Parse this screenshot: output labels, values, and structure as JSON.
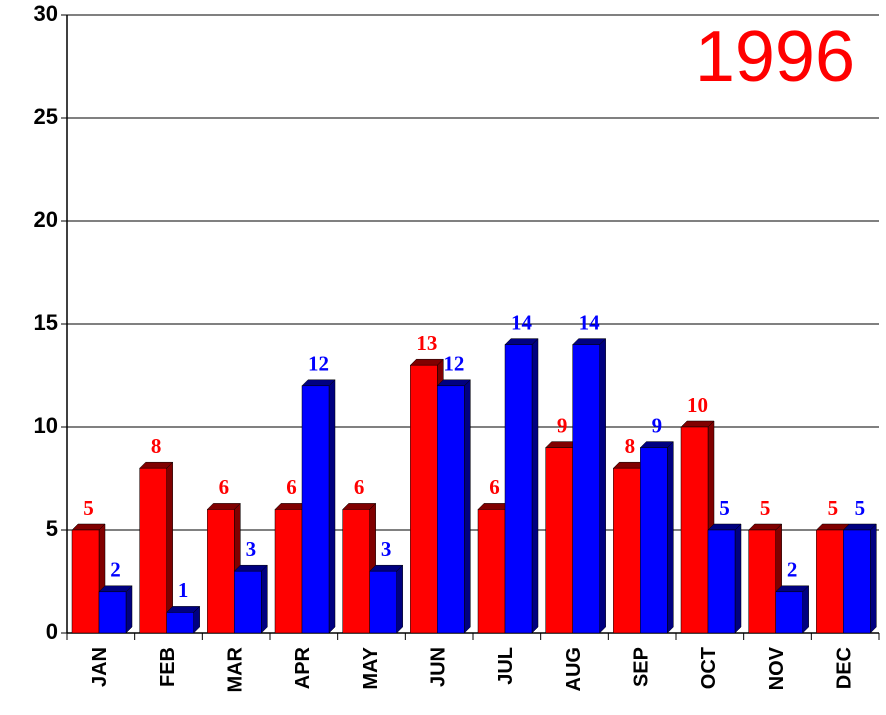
{
  "chart_data": {
    "type": "bar",
    "title": "1996",
    "categories": [
      "JAN",
      "FEB",
      "MAR",
      "APR",
      "MAY",
      "JUN",
      "JUL",
      "AUG",
      "SEP",
      "OCT",
      "NOV",
      "DEC"
    ],
    "series": [
      {
        "color": "#ff0000",
        "values": [
          5,
          8,
          6,
          6,
          6,
          13,
          6,
          9,
          8,
          10,
          5,
          5
        ]
      },
      {
        "color": "#0000ff",
        "values": [
          2,
          1,
          3,
          12,
          3,
          12,
          14,
          14,
          9,
          5,
          2,
          5
        ]
      }
    ],
    "ylim": [
      0,
      30
    ],
    "yticks": [
      0,
      5,
      10,
      15,
      20,
      25,
      30
    ],
    "grid": true
  }
}
